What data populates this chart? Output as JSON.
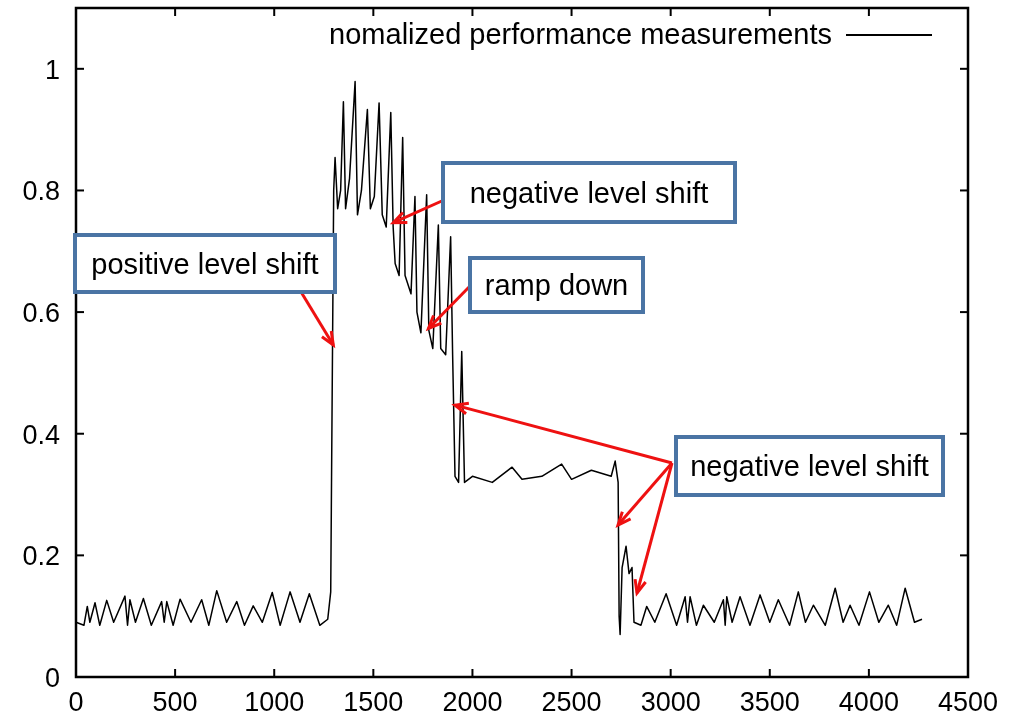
{
  "chart_data": {
    "type": "line",
    "xlim": [
      0,
      4500
    ],
    "ylim": [
      0,
      1.1
    ],
    "xticks": [
      0,
      500,
      1000,
      1500,
      2000,
      2500,
      3000,
      3500,
      4000,
      4500
    ],
    "yticks": [
      0,
      0.2,
      0.4,
      0.6,
      0.8,
      1
    ],
    "legend": "top right",
    "grid": false,
    "line_style": "solid",
    "marker": "none",
    "series": [
      {
        "name": "nomalized performance measurements",
        "color": "#000000",
        "x": [
          0,
          40,
          57,
          70,
          96,
          120,
          155,
          190,
          247,
          260,
          272,
          300,
          340,
          380,
          432,
          445,
          458,
          490,
          525,
          580,
          634,
          670,
          710,
          760,
          811,
          850,
          894,
          940,
          990,
          1030,
          1080,
          1130,
          1177,
          1230,
          1270,
          1285,
          1300,
          1307,
          1320,
          1335,
          1349,
          1360,
          1380,
          1408,
          1420,
          1440,
          1470,
          1485,
          1505,
          1529,
          1545,
          1565,
          1588,
          1600,
          1610,
          1630,
          1648,
          1660,
          1690,
          1710,
          1720,
          1740,
          1769,
          1780,
          1800,
          1828,
          1840,
          1865,
          1890,
          1900,
          1912,
          1930,
          1946,
          1960,
          2000,
          2100,
          2200,
          2250,
          2350,
          2450,
          2500,
          2600,
          2700,
          2720,
          2735,
          2740,
          2745,
          2755,
          2775,
          2790,
          2805,
          2815,
          2850,
          2879,
          2920,
          2977,
          3030,
          3073,
          3085,
          3098,
          3130,
          3165,
          3220,
          3266,
          3275,
          3283,
          3310,
          3350,
          3400,
          3451,
          3500,
          3543,
          3600,
          3644,
          3680,
          3720,
          3780,
          3830,
          3870,
          3905,
          3950,
          4003,
          4050,
          4098,
          4140,
          4183,
          4230,
          4268
        ],
        "values": [
          0.09,
          0.085,
          0.116,
          0.09,
          0.122,
          0.085,
          0.126,
          0.09,
          0.133,
          0.085,
          0.127,
          0.09,
          0.129,
          0.085,
          0.124,
          0.09,
          0.124,
          0.085,
          0.128,
          0.09,
          0.127,
          0.085,
          0.142,
          0.09,
          0.124,
          0.085,
          0.117,
          0.09,
          0.139,
          0.085,
          0.14,
          0.09,
          0.137,
          0.085,
          0.095,
          0.14,
          0.8,
          0.854,
          0.77,
          0.8,
          0.946,
          0.77,
          0.82,
          0.979,
          0.76,
          0.8,
          0.933,
          0.77,
          0.79,
          0.944,
          0.76,
          0.74,
          0.928,
          0.74,
          0.68,
          0.66,
          0.887,
          0.66,
          0.63,
          0.79,
          0.6,
          0.566,
          0.793,
          0.57,
          0.54,
          0.743,
          0.54,
          0.53,
          0.724,
          0.53,
          0.33,
          0.32,
          0.535,
          0.32,
          0.33,
          0.32,
          0.345,
          0.325,
          0.33,
          0.35,
          0.325,
          0.34,
          0.33,
          0.355,
          0.32,
          0.1,
          0.07,
          0.18,
          0.215,
          0.17,
          0.18,
          0.09,
          0.085,
          0.116,
          0.09,
          0.137,
          0.085,
          0.132,
          0.09,
          0.132,
          0.085,
          0.118,
          0.09,
          0.127,
          0.085,
          0.132,
          0.09,
          0.132,
          0.085,
          0.135,
          0.09,
          0.127,
          0.085,
          0.14,
          0.09,
          0.118,
          0.085,
          0.146,
          0.09,
          0.118,
          0.085,
          0.14,
          0.09,
          0.118,
          0.085,
          0.146,
          0.09,
          0.095
        ]
      }
    ],
    "annotations": [
      {
        "text": "positive level shift",
        "x": 1298,
        "y": 0.546
      },
      {
        "text": "negative level shift",
        "x": 1601,
        "y": 0.747
      },
      {
        "text": "ramp down",
        "x": 1778,
        "y": 0.573
      },
      {
        "text": "negative level shift",
        "x": 1912,
        "y": 0.447
      }
    ]
  }
}
